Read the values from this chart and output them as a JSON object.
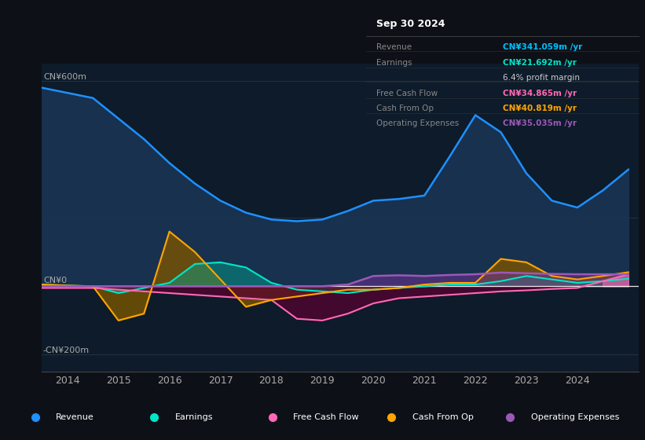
{
  "bg_color": "#0d1117",
  "chart_bg": "#0d1b2a",
  "info_box_title": "Sep 30 2024",
  "info_rows": [
    {
      "label": "Revenue",
      "value": "CN¥341.059m /yr",
      "value_color": "#00bfff"
    },
    {
      "label": "Earnings",
      "value": "CN¥21.692m /yr",
      "value_color": "#00e5c8"
    },
    {
      "label": "",
      "value": "6.4% profit margin",
      "value_color": "#cccccc"
    },
    {
      "label": "Free Cash Flow",
      "value": "CN¥34.865m /yr",
      "value_color": "#ff69b4"
    },
    {
      "label": "Cash From Op",
      "value": "CN¥40.819m /yr",
      "value_color": "#ffa500"
    },
    {
      "label": "Operating Expenses",
      "value": "CN¥35.035m /yr",
      "value_color": "#9b59b6"
    }
  ],
  "ylabel_top": "CN¥600m",
  "ylabel_zero": "CN¥0",
  "ylabel_bottom": "-CN¥200m",
  "xlim": [
    2013.5,
    2025.2
  ],
  "ylim": [
    -250,
    650
  ],
  "xtick_locs": [
    2014,
    2015,
    2016,
    2017,
    2018,
    2019,
    2020,
    2021,
    2022,
    2023,
    2024
  ],
  "x": [
    2013.5,
    2014.0,
    2014.5,
    2015.0,
    2015.5,
    2016.0,
    2016.5,
    2017.0,
    2017.5,
    2018.0,
    2018.5,
    2019.0,
    2019.5,
    2020.0,
    2020.5,
    2021.0,
    2021.5,
    2022.0,
    2022.5,
    2023.0,
    2023.5,
    2024.0,
    2024.5,
    2025.0
  ],
  "revenue": [
    580,
    565,
    550,
    490,
    430,
    360,
    300,
    250,
    215,
    195,
    190,
    195,
    220,
    250,
    255,
    265,
    380,
    500,
    450,
    330,
    250,
    230,
    280,
    341
  ],
  "earnings": [
    5,
    2,
    0,
    -20,
    -5,
    10,
    65,
    70,
    55,
    10,
    -10,
    -15,
    -20,
    -10,
    -5,
    0,
    5,
    5,
    15,
    30,
    20,
    10,
    15,
    22
  ],
  "free_cf": [
    -5,
    -5,
    -5,
    -10,
    -15,
    -20,
    -25,
    -30,
    -35,
    -40,
    -95,
    -100,
    -80,
    -50,
    -35,
    -30,
    -25,
    -20,
    -15,
    -12,
    -8,
    -5,
    15,
    35
  ],
  "cash_op": [
    5,
    2,
    0,
    -100,
    -80,
    160,
    100,
    20,
    -60,
    -40,
    -30,
    -20,
    -10,
    -10,
    -5,
    5,
    10,
    10,
    80,
    70,
    30,
    20,
    30,
    41
  ],
  "op_exp": [
    0,
    0,
    0,
    0,
    0,
    0,
    0,
    0,
    0,
    0,
    0,
    0,
    5,
    30,
    32,
    30,
    33,
    35,
    40,
    38,
    36,
    35,
    35,
    35
  ],
  "revenue_line_color": "#1e90ff",
  "revenue_fill_color": "#1a3555",
  "earnings_line_color": "#00e5c8",
  "earnings_fill_color": "#00a890",
  "freecf_line_color": "#ff69b4",
  "freecf_fill_neg": "#5a0030",
  "freecf_fill_pos": "#ff69b440",
  "cashop_line_color": "#ffa500",
  "cashop_fill_color": "#7a5500",
  "opexp_line_color": "#9b59b6",
  "opexp_fill_color": "#6a3090",
  "legend": [
    {
      "label": "Revenue",
      "color": "#1e90ff"
    },
    {
      "label": "Earnings",
      "color": "#00e5c8"
    },
    {
      "label": "Free Cash Flow",
      "color": "#ff69b4"
    },
    {
      "label": "Cash From Op",
      "color": "#ffa500"
    },
    {
      "label": "Operating Expenses",
      "color": "#9b59b6"
    }
  ]
}
